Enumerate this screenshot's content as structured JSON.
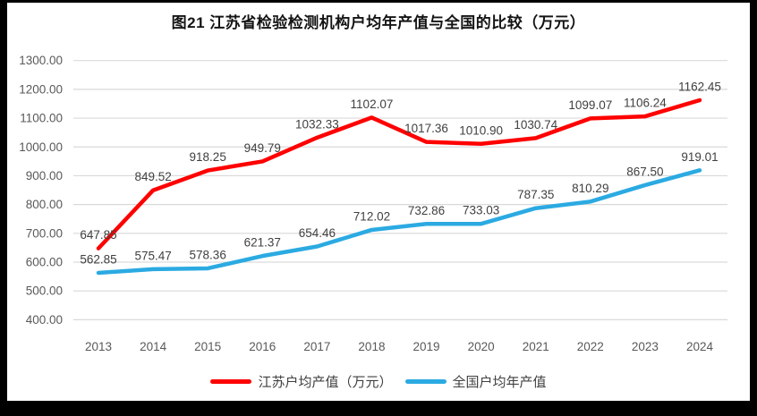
{
  "chart_data": {
    "type": "line",
    "title": "图21  江苏省检验检测机构户均年产值与全国的比较（万元）",
    "xlabel": "",
    "ylabel": "",
    "categories": [
      "2013",
      "2014",
      "2015",
      "2016",
      "2017",
      "2018",
      "2019",
      "2020",
      "2021",
      "2022",
      "2023",
      "2024"
    ],
    "series": [
      {
        "name": "江苏户均产值（万元）",
        "color": "#fe0000",
        "values": [
          647.85,
          849.52,
          918.25,
          949.79,
          1032.33,
          1102.07,
          1017.36,
          1010.9,
          1030.74,
          1099.07,
          1106.24,
          1162.45
        ]
      },
      {
        "name": "全国户均年产值",
        "color": "#2baae2",
        "values": [
          562.85,
          575.47,
          578.36,
          621.37,
          654.46,
          712.02,
          732.86,
          733.03,
          787.35,
          810.29,
          867.5,
          919.01
        ]
      }
    ],
    "ylim": [
      400,
      1300
    ],
    "ytick_step": 100,
    "ytick_labels": [
      "400.00",
      "500.00",
      "600.00",
      "700.00",
      "800.00",
      "900.00",
      "1000.00",
      "1100.00",
      "1200.00",
      "1300.00"
    ],
    "grid": true,
    "show_data_labels": true,
    "legend_position": "bottom",
    "colors": {
      "gridline": "#d9d9d9",
      "axis_label": "#595959",
      "data_label": "#404040",
      "plot_background": "#ffffff",
      "frame_border": "#000000",
      "title_text": "#141414"
    }
  }
}
